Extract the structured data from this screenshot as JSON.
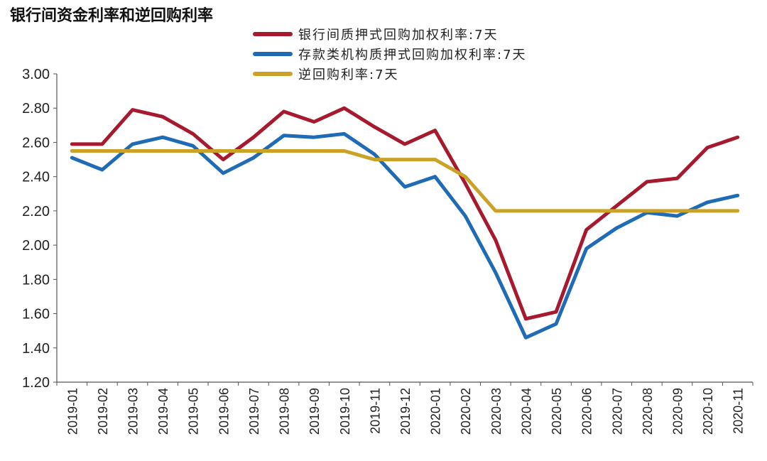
{
  "title": "银行间资金利率和逆回购利率",
  "chart_data": {
    "type": "line",
    "title": "银行间资金利率和逆回购利率",
    "xlabel": "",
    "ylabel": "",
    "ylim": [
      1.2,
      3.0
    ],
    "yticks": [
      "3.00",
      "2.80",
      "2.60",
      "2.40",
      "2.20",
      "2.00",
      "1.80",
      "1.60",
      "1.40",
      "1.20"
    ],
    "categories": [
      "2019-01",
      "2019-02",
      "2019-03",
      "2019-04",
      "2019-05",
      "2019-06",
      "2019-07",
      "2019-08",
      "2019-09",
      "2019-10",
      "2019-11",
      "2019-12",
      "2020-01",
      "2020-02",
      "2020-03",
      "2020-04",
      "2020-05",
      "2020-06",
      "2020-07",
      "2020-08",
      "2020-09",
      "2020-10",
      "2020-11"
    ],
    "grid": false,
    "legend_position": "top",
    "series": [
      {
        "name": "银行间质押式回购加权利率:7天",
        "color": "#A6192E",
        "values": [
          2.59,
          2.59,
          2.79,
          2.75,
          2.65,
          2.5,
          2.63,
          2.78,
          2.72,
          2.8,
          2.69,
          2.59,
          2.67,
          2.36,
          2.03,
          1.57,
          1.61,
          2.09,
          2.23,
          2.37,
          2.39,
          2.57,
          2.63
        ]
      },
      {
        "name": "存款类机构质押式回购加权利率:7天",
        "color": "#1F6BB5",
        "values": [
          2.51,
          2.44,
          2.59,
          2.63,
          2.58,
          2.42,
          2.51,
          2.64,
          2.63,
          2.65,
          2.53,
          2.34,
          2.4,
          2.17,
          1.84,
          1.46,
          1.54,
          1.98,
          2.1,
          2.19,
          2.17,
          2.25,
          2.29
        ]
      },
      {
        "name": "逆回购利率:7天",
        "color": "#C9A227",
        "values": [
          2.55,
          2.55,
          2.55,
          2.55,
          2.55,
          2.55,
          2.55,
          2.55,
          2.55,
          2.55,
          2.5,
          2.5,
          2.5,
          2.4,
          2.2,
          2.2,
          2.2,
          2.2,
          2.2,
          2.2,
          2.2,
          2.2,
          2.2
        ]
      }
    ]
  }
}
